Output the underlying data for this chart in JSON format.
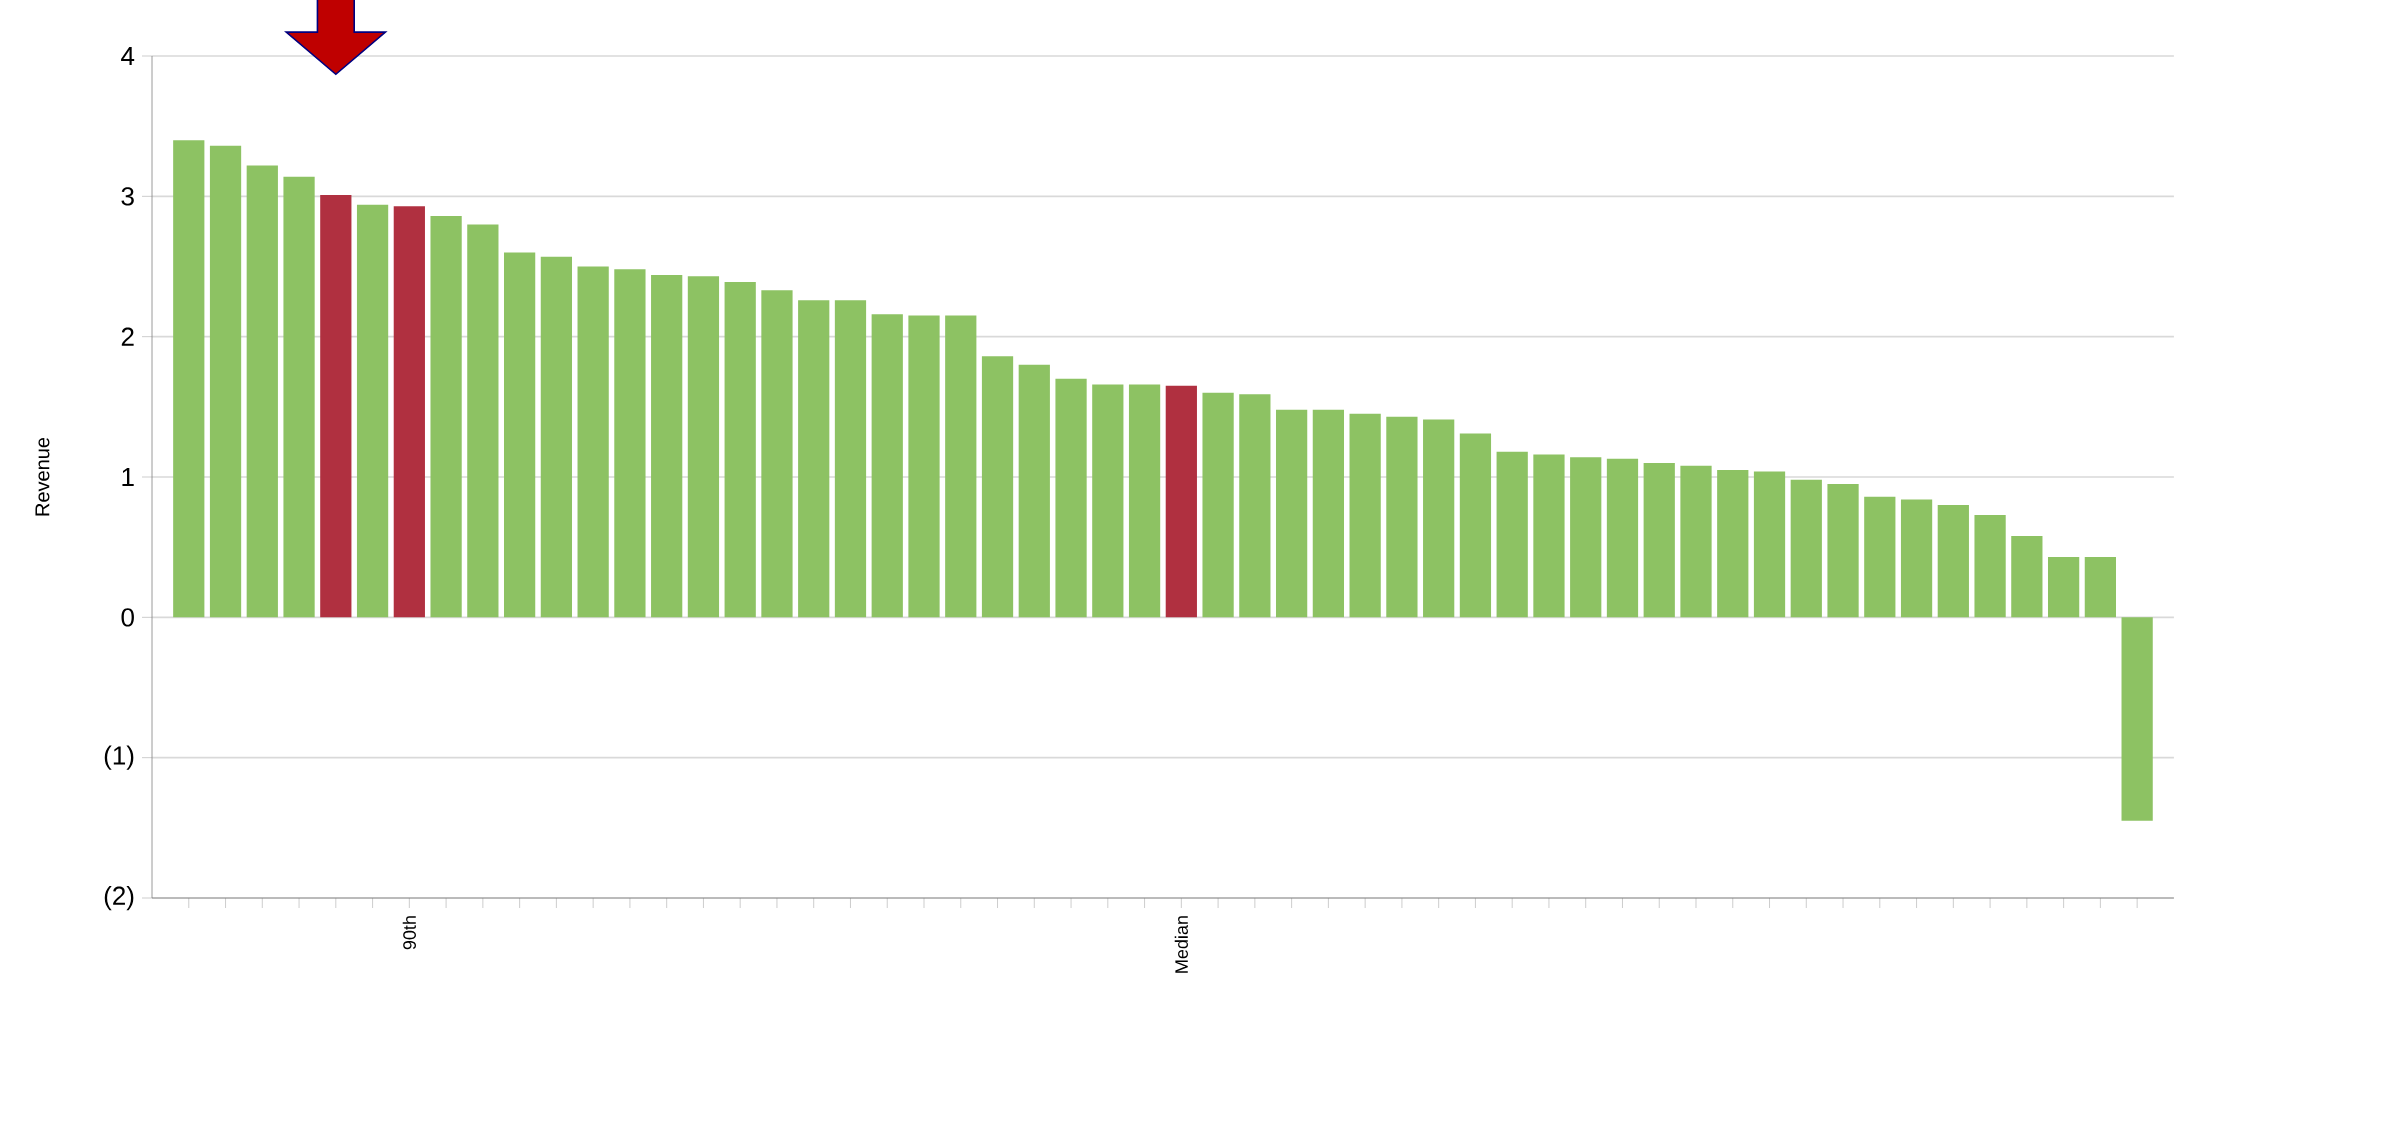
{
  "chart_data": {
    "type": "bar",
    "ylabel": "Revenue",
    "categories": [
      null,
      null,
      null,
      null,
      null,
      null,
      "90th",
      null,
      null,
      null,
      null,
      null,
      null,
      null,
      null,
      null,
      null,
      null,
      null,
      null,
      null,
      null,
      null,
      null,
      null,
      null,
      null,
      "Median",
      null,
      null,
      null,
      null,
      null,
      null,
      null,
      null,
      null,
      null,
      null,
      null,
      null,
      null,
      null,
      null,
      null,
      null,
      null,
      null,
      null,
      null,
      null,
      null,
      null,
      null
    ],
    "values": [
      3.4,
      3.36,
      3.22,
      3.14,
      3.01,
      2.94,
      2.93,
      2.86,
      2.8,
      2.6,
      2.57,
      2.5,
      2.48,
      2.44,
      2.43,
      2.39,
      2.33,
      2.26,
      2.26,
      2.16,
      2.15,
      2.15,
      1.86,
      1.8,
      1.7,
      1.66,
      1.66,
      1.65,
      1.6,
      1.59,
      1.48,
      1.48,
      1.45,
      1.43,
      1.41,
      1.31,
      1.18,
      1.16,
      1.14,
      1.13,
      1.1,
      1.08,
      1.05,
      1.04,
      0.98,
      0.95,
      0.86,
      0.84,
      0.8,
      0.73,
      0.58,
      0.43,
      0.43,
      -1.45
    ],
    "colors": [
      "#8dc263",
      "#8dc263",
      "#8dc263",
      "#8dc263",
      "#b03040",
      "#8dc263",
      "#b03040",
      "#8dc263",
      "#8dc263",
      "#8dc263",
      "#8dc263",
      "#8dc263",
      "#8dc263",
      "#8dc263",
      "#8dc263",
      "#8dc263",
      "#8dc263",
      "#8dc263",
      "#8dc263",
      "#8dc263",
      "#8dc263",
      "#8dc263",
      "#8dc263",
      "#8dc263",
      "#8dc263",
      "#8dc263",
      "#8dc263",
      "#b03040",
      "#8dc263",
      "#8dc263",
      "#8dc263",
      "#8dc263",
      "#8dc263",
      "#8dc263",
      "#8dc263",
      "#8dc263",
      "#8dc263",
      "#8dc263",
      "#8dc263",
      "#8dc263",
      "#8dc263",
      "#8dc263",
      "#8dc263",
      "#8dc263",
      "#8dc263",
      "#8dc263",
      "#8dc263",
      "#8dc263",
      "#8dc263",
      "#8dc263",
      "#8dc263",
      "#8dc263",
      "#8dc263",
      "#8dc263"
    ],
    "ylim": [
      -2,
      4
    ],
    "yticks": [
      {
        "value": -2,
        "label": "(2)"
      },
      {
        "value": -1,
        "label": "(1)"
      },
      0,
      1,
      2,
      3,
      4
    ],
    "grid": "y"
  }
}
